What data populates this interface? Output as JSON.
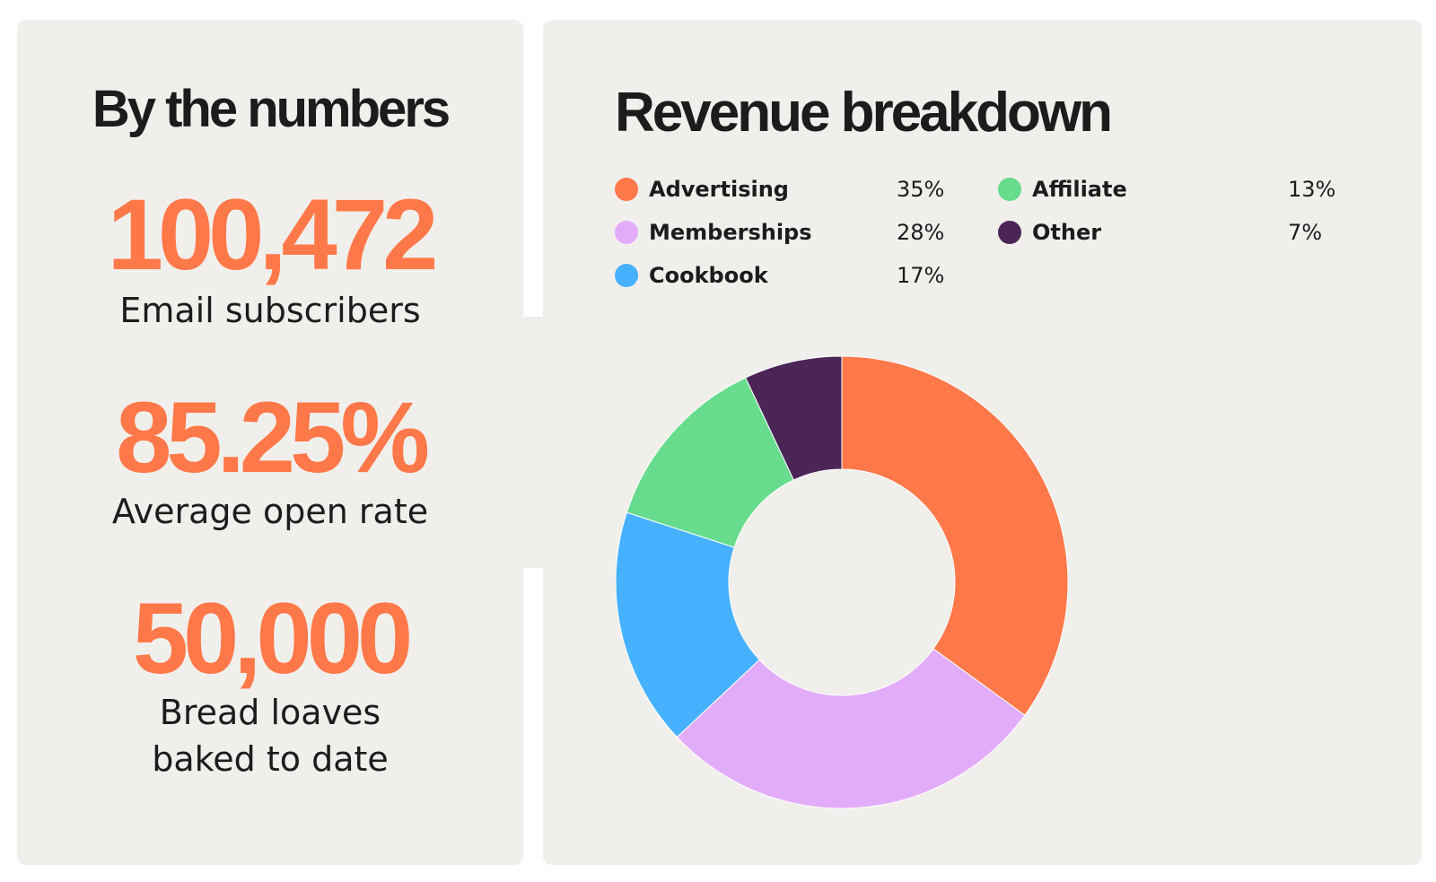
{
  "left": {
    "title": "By the numbers",
    "stats": [
      {
        "value": "100,472",
        "label": "Email subscribers"
      },
      {
        "value": "85.25%",
        "label": "Average open rate"
      },
      {
        "value": "50,000",
        "label_lines": [
          "Bread loaves",
          "baked to date"
        ]
      }
    ]
  },
  "colors": {
    "accent": "#ff7849",
    "panel": "#f1efeb"
  },
  "chart_data": {
    "type": "pie",
    "title": "Revenue breakdown",
    "donut": true,
    "legend_position": "top",
    "slices": [
      {
        "name": "Advertising",
        "value": 35,
        "label": "35%",
        "color": "#ff7849"
      },
      {
        "name": "Memberships",
        "value": 28,
        "label": "28%",
        "color": "#e2acfb"
      },
      {
        "name": "Cookbook",
        "value": 17,
        "label": "17%",
        "color": "#46b1ff"
      },
      {
        "name": "Affiliate",
        "value": 13,
        "label": "13%",
        "color": "#67dc8d"
      },
      {
        "name": "Other",
        "value": 7,
        "label": "7%",
        "color": "#4a2555"
      }
    ]
  }
}
